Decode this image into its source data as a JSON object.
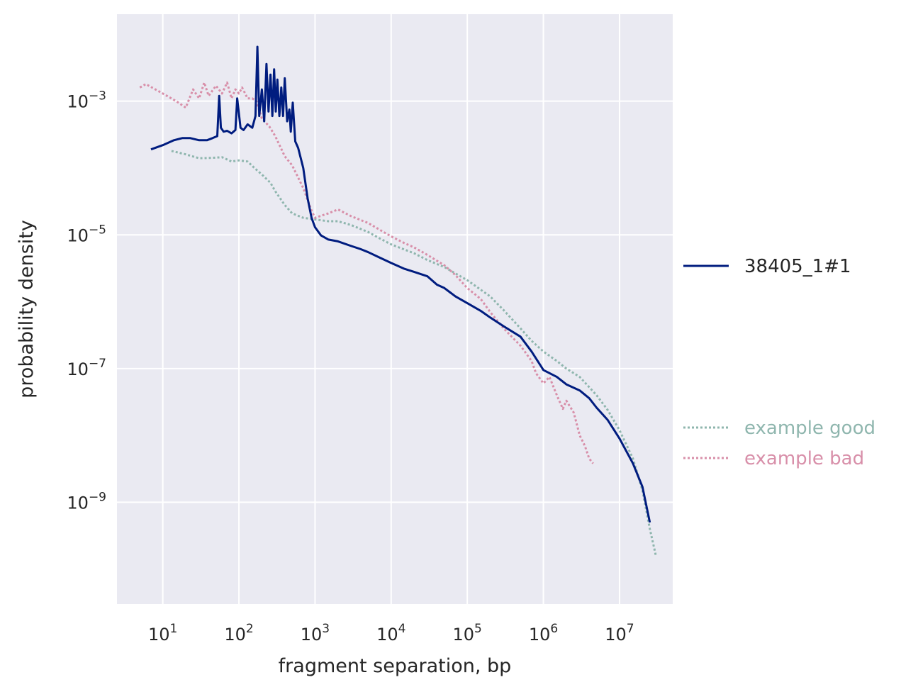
{
  "chart_data": {
    "type": "line",
    "title": "",
    "xlabel": "fragment separation, bp",
    "ylabel": "probability density",
    "xscale": "log",
    "yscale": "log",
    "xlim": [
      2.5,
      50000000
    ],
    "ylim": [
      3e-11,
      0.02
    ],
    "x_ticks": [
      {
        "base": "10",
        "exp": "1",
        "value": 10
      },
      {
        "base": "10",
        "exp": "2",
        "value": 100
      },
      {
        "base": "10",
        "exp": "3",
        "value": 1000
      },
      {
        "base": "10",
        "exp": "4",
        "value": 10000
      },
      {
        "base": "10",
        "exp": "5",
        "value": 100000
      },
      {
        "base": "10",
        "exp": "6",
        "value": 1000000
      },
      {
        "base": "10",
        "exp": "7",
        "value": 10000000
      }
    ],
    "y_ticks": [
      {
        "base": "10",
        "exp": "−3",
        "value": 0.001
      },
      {
        "base": "10",
        "exp": "−5",
        "value": 1e-05
      },
      {
        "base": "10",
        "exp": "−7",
        "value": 1e-07
      },
      {
        "base": "10",
        "exp": "−9",
        "value": 1e-09
      }
    ],
    "grid": true,
    "background": "#eaeaf2",
    "legend_placement": "right",
    "series": [
      {
        "name": "38405_1#1",
        "color": "#001c7f",
        "style": "solid",
        "points": [
          [
            7,
            0.00019
          ],
          [
            10,
            0.00022
          ],
          [
            14,
            0.00026
          ],
          [
            18,
            0.00028
          ],
          [
            23,
            0.00028
          ],
          [
            30,
            0.00026
          ],
          [
            38,
            0.00026
          ],
          [
            45,
            0.00028
          ],
          [
            52,
            0.0003
          ],
          [
            55,
            0.0012
          ],
          [
            58,
            0.0004
          ],
          [
            63,
            0.00035
          ],
          [
            70,
            0.00036
          ],
          [
            80,
            0.00033
          ],
          [
            90,
            0.00037
          ],
          [
            95,
            0.0011
          ],
          [
            105,
            0.0004
          ],
          [
            115,
            0.00037
          ],
          [
            130,
            0.00045
          ],
          [
            150,
            0.0004
          ],
          [
            165,
            0.0006
          ],
          [
            175,
            0.0065
          ],
          [
            185,
            0.0006
          ],
          [
            200,
            0.0015
          ],
          [
            215,
            0.0005
          ],
          [
            230,
            0.0036
          ],
          [
            245,
            0.0007
          ],
          [
            260,
            0.0025
          ],
          [
            275,
            0.0006
          ],
          [
            290,
            0.003
          ],
          [
            305,
            0.0007
          ],
          [
            320,
            0.0021
          ],
          [
            340,
            0.0006
          ],
          [
            360,
            0.0016
          ],
          [
            380,
            0.0006
          ],
          [
            400,
            0.0022
          ],
          [
            430,
            0.0005
          ],
          [
            460,
            0.00075
          ],
          [
            480,
            0.00035
          ],
          [
            510,
            0.00095
          ],
          [
            550,
            0.00025
          ],
          [
            600,
            0.0002
          ],
          [
            700,
            0.0001
          ],
          [
            800,
            3.5e-05
          ],
          [
            900,
            1.8e-05
          ],
          [
            1000,
            1.3e-05
          ],
          [
            1200,
            9.8e-06
          ],
          [
            1500,
            8.5e-06
          ],
          [
            2000,
            8e-06
          ],
          [
            3000,
            6.8e-06
          ],
          [
            4000,
            6.1e-06
          ],
          [
            5000,
            5.5e-06
          ],
          [
            7000,
            4.6e-06
          ],
          [
            10000,
            3.8e-06
          ],
          [
            15000,
            3.1e-06
          ],
          [
            20000,
            2.8e-06
          ],
          [
            30000,
            2.4e-06
          ],
          [
            40000,
            1.8e-06
          ],
          [
            50000,
            1.6e-06
          ],
          [
            70000,
            1.2e-06
          ],
          [
            100000,
            9.5e-07
          ],
          [
            150000,
            7.3e-07
          ],
          [
            200000,
            5.8e-07
          ],
          [
            300000,
            4.3e-07
          ],
          [
            500000,
            3e-07
          ],
          [
            700000,
            1.8e-07
          ],
          [
            1000000,
            9.5e-08
          ],
          [
            1500000,
            7.5e-08
          ],
          [
            2000000,
            5.8e-08
          ],
          [
            3000000,
            4.7e-08
          ],
          [
            4000000,
            3.6e-08
          ],
          [
            5000000,
            2.6e-08
          ],
          [
            7000000,
            1.7e-08
          ],
          [
            10000000,
            9e-09
          ],
          [
            15000000,
            3.8e-09
          ],
          [
            20000000,
            1.7e-09
          ],
          [
            25000000,
            5e-10
          ]
        ]
      },
      {
        "name": "example good",
        "color": "#8fb6ae",
        "style": "dotted",
        "points": [
          [
            13,
            0.00018
          ],
          [
            20,
            0.00016
          ],
          [
            30,
            0.00014
          ],
          [
            45,
            0.000142
          ],
          [
            60,
            0.000145
          ],
          [
            80,
            0.000125
          ],
          [
            100,
            0.00013
          ],
          [
            130,
            0.000125
          ],
          [
            160,
            0.0001
          ],
          [
            200,
            8e-05
          ],
          [
            260,
            6e-05
          ],
          [
            300,
            4.5e-05
          ],
          [
            400,
            2.8e-05
          ],
          [
            500,
            2.1e-05
          ],
          [
            700,
            1.8e-05
          ],
          [
            1000,
            1.7e-05
          ],
          [
            1500,
            1.6e-05
          ],
          [
            2000,
            1.6e-05
          ],
          [
            3000,
            1.4e-05
          ],
          [
            5000,
            1.1e-05
          ],
          [
            7000,
            8.9e-06
          ],
          [
            10000,
            7.2e-06
          ],
          [
            20000,
            5.3e-06
          ],
          [
            30000,
            4.2e-06
          ],
          [
            50000,
            3.3e-06
          ],
          [
            100000,
            2.1e-06
          ],
          [
            200000,
            1.2e-06
          ],
          [
            300000,
            7.5e-07
          ],
          [
            500000,
            4e-07
          ],
          [
            700000,
            2.6e-07
          ],
          [
            1000000,
            1.8e-07
          ],
          [
            1500000,
            1.3e-07
          ],
          [
            2000000,
            1e-07
          ],
          [
            3000000,
            7.5e-08
          ],
          [
            5000000,
            4e-08
          ],
          [
            7000000,
            2.4e-08
          ],
          [
            10000000,
            1.2e-08
          ],
          [
            15000000,
            4.5e-09
          ],
          [
            20000000,
            1.5e-09
          ],
          [
            25000000,
            4e-10
          ],
          [
            30000000,
            1.6e-10
          ]
        ]
      },
      {
        "name": "example bad",
        "color": "#d88fa9",
        "style": "dotted",
        "points": [
          [
            5,
            0.0016
          ],
          [
            6,
            0.0018
          ],
          [
            8,
            0.0015
          ],
          [
            10,
            0.0013
          ],
          [
            15,
            0.001
          ],
          [
            20,
            0.0008
          ],
          [
            25,
            0.0015
          ],
          [
            30,
            0.0011
          ],
          [
            35,
            0.0019
          ],
          [
            40,
            0.0012
          ],
          [
            50,
            0.0017
          ],
          [
            60,
            0.0013
          ],
          [
            70,
            0.0019
          ],
          [
            80,
            0.0011
          ],
          [
            90,
            0.0015
          ],
          [
            100,
            0.0013
          ],
          [
            110,
            0.0016
          ],
          [
            130,
            0.0011
          ],
          [
            150,
            0.0011
          ],
          [
            170,
            0.001
          ],
          [
            200,
            0.00055
          ],
          [
            250,
            0.00042
          ],
          [
            300,
            0.0003
          ],
          [
            400,
            0.00015
          ],
          [
            500,
            0.00011
          ],
          [
            700,
            5e-05
          ],
          [
            900,
            2.3e-05
          ],
          [
            1000,
            1.8e-05
          ],
          [
            1500,
            2.1e-05
          ],
          [
            2000,
            2.4e-05
          ],
          [
            3000,
            1.9e-05
          ],
          [
            5000,
            1.5e-05
          ],
          [
            7000,
            1.2e-05
          ],
          [
            10000,
            9.5e-06
          ],
          [
            15000,
            7.5e-06
          ],
          [
            20000,
            6.5e-06
          ],
          [
            30000,
            5e-06
          ],
          [
            50000,
            3.5e-06
          ],
          [
            70000,
            2.5e-06
          ],
          [
            100000,
            1.6e-06
          ],
          [
            150000,
            1.1e-06
          ],
          [
            200000,
            7e-07
          ],
          [
            300000,
            4e-07
          ],
          [
            500000,
            2.2e-07
          ],
          [
            700000,
            1.3e-07
          ],
          [
            800000,
            8.5e-08
          ],
          [
            1000000,
            6e-08
          ],
          [
            1200000,
            7.5e-08
          ],
          [
            1500000,
            4e-08
          ],
          [
            1800000,
            2.5e-08
          ],
          [
            2000000,
            3.3e-08
          ],
          [
            2500000,
            2.2e-08
          ],
          [
            3000000,
            1e-08
          ],
          [
            3500000,
            7e-09
          ],
          [
            4000000,
            4.5e-09
          ],
          [
            4500000,
            3.8e-09
          ]
        ]
      }
    ]
  }
}
